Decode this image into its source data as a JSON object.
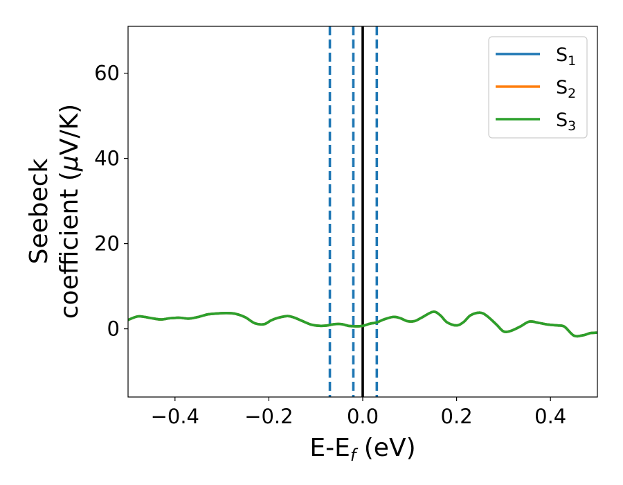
{
  "chart_data": {
    "type": "line",
    "xlabel": {
      "main": "E-E",
      "sub": "f",
      "unit": " (eV)"
    },
    "ylabel": {
      "line1": "Seebeck",
      "line2_text": "coefficient  (",
      "line2_mu": "μ",
      "line2_unit": "V/K)"
    },
    "xlim": [
      -0.5,
      0.5
    ],
    "ylim": [
      -16,
      71
    ],
    "xticks": [
      -0.4,
      -0.2,
      0.0,
      0.2,
      0.4
    ],
    "xtick_labels": [
      "−0.4",
      "−0.2",
      "0.0",
      "0.2",
      "0.4"
    ],
    "yticks": [
      0,
      20,
      40,
      60
    ],
    "ytick_labels": [
      "0",
      "20",
      "40",
      "60"
    ],
    "grid": false,
    "legend_position": "top-right",
    "vlines": [
      {
        "x": -0.07,
        "style": "dashed",
        "color": "#1f77b4"
      },
      {
        "x": -0.02,
        "style": "dashed",
        "color": "#1f77b4"
      },
      {
        "x": 0.03,
        "style": "dashed",
        "color": "#1f77b4"
      },
      {
        "x": 0.0,
        "style": "solid",
        "color": "#000000"
      }
    ],
    "x": [
      -0.5,
      -0.48,
      -0.465,
      -0.45,
      -0.43,
      -0.41,
      -0.39,
      -0.37,
      -0.35,
      -0.33,
      -0.31,
      -0.29,
      -0.27,
      -0.25,
      -0.23,
      -0.21,
      -0.195,
      -0.18,
      -0.16,
      -0.145,
      -0.13,
      -0.11,
      -0.09,
      -0.075,
      -0.06,
      -0.045,
      -0.03,
      -0.015,
      0.0,
      0.015,
      0.03,
      0.045,
      0.065,
      0.08,
      0.095,
      0.11,
      0.125,
      0.15,
      0.165,
      0.18,
      0.2,
      0.215,
      0.23,
      0.25,
      0.265,
      0.285,
      0.3,
      0.315,
      0.335,
      0.355,
      0.375,
      0.395,
      0.415,
      0.43,
      0.45,
      0.47,
      0.485,
      0.5
    ],
    "series": [
      {
        "name": "S",
        "sub": "1",
        "color": "#1f77b4",
        "y": [
          2.1,
          2.9,
          2.8,
          2.5,
          2.2,
          2.5,
          2.6,
          2.4,
          2.8,
          3.4,
          3.6,
          3.7,
          3.5,
          2.7,
          1.3,
          1.1,
          2.0,
          2.6,
          3.0,
          2.6,
          1.9,
          1.0,
          0.7,
          0.8,
          1.1,
          1.1,
          0.7,
          0.6,
          0.7,
          1.2,
          1.5,
          2.2,
          2.8,
          2.5,
          1.8,
          1.8,
          2.6,
          4.0,
          3.2,
          1.5,
          0.8,
          1.6,
          3.2,
          3.8,
          3.0,
          1.0,
          -0.6,
          -0.5,
          0.5,
          1.7,
          1.4,
          1.0,
          0.8,
          0.5,
          -1.6,
          -1.5,
          -1.0,
          -0.9
        ]
      },
      {
        "name": "S",
        "sub": "2",
        "color": "#ff7f0e",
        "y": [
          2.1,
          2.9,
          2.8,
          2.5,
          2.2,
          2.5,
          2.6,
          2.4,
          2.8,
          3.4,
          3.6,
          3.7,
          3.5,
          2.7,
          1.3,
          1.1,
          2.0,
          2.6,
          3.0,
          2.6,
          1.9,
          1.0,
          0.7,
          0.8,
          1.1,
          1.1,
          0.7,
          0.6,
          0.7,
          1.2,
          1.5,
          2.2,
          2.8,
          2.5,
          1.8,
          1.8,
          2.6,
          4.0,
          3.2,
          1.5,
          0.8,
          1.6,
          3.2,
          3.8,
          3.0,
          1.0,
          -0.6,
          -0.5,
          0.5,
          1.7,
          1.4,
          1.0,
          0.8,
          0.5,
          -1.6,
          -1.5,
          -1.0,
          -0.9
        ]
      },
      {
        "name": "S",
        "sub": "3",
        "color": "#2ca02c",
        "y": [
          2.1,
          2.9,
          2.8,
          2.5,
          2.2,
          2.5,
          2.6,
          2.4,
          2.8,
          3.4,
          3.6,
          3.7,
          3.5,
          2.7,
          1.3,
          1.1,
          2.0,
          2.6,
          3.0,
          2.6,
          1.9,
          1.0,
          0.7,
          0.8,
          1.1,
          1.1,
          0.7,
          0.6,
          0.7,
          1.2,
          1.5,
          2.2,
          2.8,
          2.5,
          1.8,
          1.8,
          2.6,
          4.0,
          3.2,
          1.5,
          0.8,
          1.6,
          3.2,
          3.8,
          3.0,
          1.0,
          -0.6,
          -0.5,
          0.5,
          1.7,
          1.4,
          1.0,
          0.8,
          0.5,
          -1.6,
          -1.5,
          -1.0,
          -0.9
        ]
      }
    ]
  }
}
